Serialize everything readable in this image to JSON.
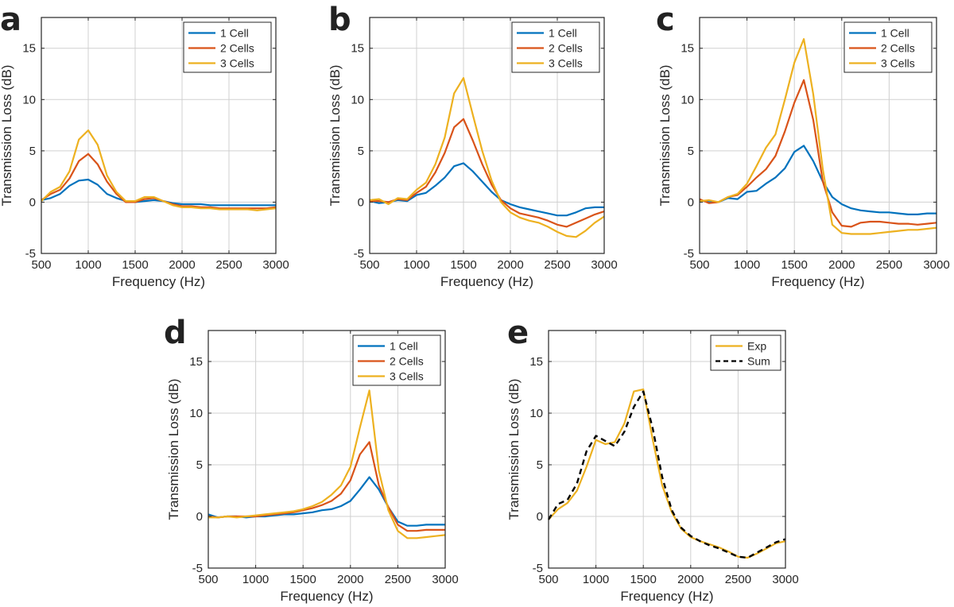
{
  "colors": {
    "1 Cell": "#0072BD",
    "2 Cells": "#D95319",
    "3 Cells": "#EDB120",
    "Exp": "#EDB120",
    "Sum": "#000000"
  },
  "chart_data": [
    {
      "panel": "a",
      "type": "line",
      "xlabel": "Frequency (Hz)",
      "ylabel": "Transmission Loss (dB)",
      "xlim": [
        500,
        3000
      ],
      "ylim": [
        -5,
        18
      ],
      "xticks": [
        500,
        1000,
        1500,
        2000,
        2500,
        3000
      ],
      "yticks": [
        -5,
        0,
        5,
        10,
        15
      ],
      "grid": true,
      "legend_position": "top-right",
      "x": [
        500,
        600,
        700,
        800,
        900,
        1000,
        1100,
        1200,
        1300,
        1400,
        1500,
        1600,
        1700,
        1800,
        1900,
        2000,
        2100,
        2200,
        2300,
        2400,
        2500,
        2600,
        2700,
        2800,
        2900,
        3000
      ],
      "series": [
        {
          "name": "1 Cell",
          "values": [
            0.2,
            0.4,
            0.8,
            1.6,
            2.1,
            2.2,
            1.7,
            0.8,
            0.4,
            0.1,
            0.0,
            0.1,
            0.2,
            0.1,
            -0.1,
            -0.2,
            -0.2,
            -0.2,
            -0.3,
            -0.3,
            -0.3,
            -0.3,
            -0.3,
            -0.3,
            -0.3,
            -0.3
          ]
        },
        {
          "name": "2 Cells",
          "values": [
            0.2,
            0.8,
            1.2,
            2.3,
            4.0,
            4.7,
            3.7,
            2.0,
            0.8,
            0.0,
            0.0,
            0.3,
            0.4,
            0.1,
            -0.2,
            -0.4,
            -0.4,
            -0.5,
            -0.5,
            -0.6,
            -0.6,
            -0.6,
            -0.6,
            -0.6,
            -0.6,
            -0.5
          ]
        },
        {
          "name": "3 Cells",
          "values": [
            0.1,
            1.0,
            1.5,
            3.0,
            6.1,
            7.0,
            5.6,
            2.6,
            1.0,
            0.1,
            0.1,
            0.5,
            0.5,
            0.1,
            -0.3,
            -0.5,
            -0.5,
            -0.6,
            -0.6,
            -0.7,
            -0.7,
            -0.7,
            -0.7,
            -0.8,
            -0.7,
            -0.6
          ]
        }
      ]
    },
    {
      "panel": "b",
      "type": "line",
      "xlabel": "Frequency (Hz)",
      "ylabel": "Transmission Loss (dB)",
      "xlim": [
        500,
        3000
      ],
      "ylim": [
        -5,
        18
      ],
      "xticks": [
        500,
        1000,
        1500,
        2000,
        2500,
        3000
      ],
      "yticks": [
        -5,
        0,
        5,
        10,
        15
      ],
      "grid": true,
      "legend_position": "top-right",
      "x": [
        500,
        600,
        700,
        800,
        900,
        1000,
        1100,
        1200,
        1300,
        1400,
        1500,
        1600,
        1700,
        1800,
        1900,
        2000,
        2100,
        2200,
        2300,
        2400,
        2500,
        2600,
        2700,
        2800,
        2900,
        3000
      ],
      "series": [
        {
          "name": "1 Cell",
          "values": [
            0.1,
            -0.1,
            0.0,
            0.2,
            0.1,
            0.7,
            0.9,
            1.6,
            2.4,
            3.5,
            3.8,
            3.0,
            2.0,
            1.0,
            0.2,
            -0.2,
            -0.5,
            -0.7,
            -0.9,
            -1.1,
            -1.3,
            -1.3,
            -1.0,
            -0.6,
            -0.5,
            -0.5
          ]
        },
        {
          "name": "2 Cells",
          "values": [
            0.1,
            0.1,
            0.0,
            0.3,
            0.2,
            0.9,
            1.5,
            2.9,
            4.8,
            7.3,
            8.1,
            6.0,
            3.7,
            1.7,
            0.2,
            -0.6,
            -1.1,
            -1.3,
            -1.5,
            -1.8,
            -2.2,
            -2.4,
            -2.0,
            -1.6,
            -1.2,
            -0.9
          ]
        },
        {
          "name": "3 Cells",
          "values": [
            0.2,
            0.3,
            -0.2,
            0.4,
            0.3,
            1.2,
            1.9,
            3.7,
            6.3,
            10.6,
            12.1,
            8.5,
            5.0,
            2.1,
            0.0,
            -1.0,
            -1.5,
            -1.8,
            -2.0,
            -2.4,
            -2.9,
            -3.3,
            -3.4,
            -2.8,
            -2.0,
            -1.4
          ]
        }
      ]
    },
    {
      "panel": "c",
      "type": "line",
      "xlabel": "Frequency (Hz)",
      "ylabel": "Transmission Loss (dB)",
      "xlim": [
        500,
        3000
      ],
      "ylim": [
        -5,
        18
      ],
      "xticks": [
        500,
        1000,
        1500,
        2000,
        2500,
        3000
      ],
      "yticks": [
        -5,
        0,
        5,
        10,
        15
      ],
      "grid": true,
      "legend_position": "top-right",
      "x": [
        500,
        600,
        700,
        800,
        900,
        1000,
        1100,
        1200,
        1300,
        1400,
        1500,
        1600,
        1700,
        1800,
        1900,
        2000,
        2100,
        2200,
        2300,
        2400,
        2500,
        2600,
        2700,
        2800,
        2900,
        3000
      ],
      "series": [
        {
          "name": "1 Cell",
          "values": [
            0.2,
            0.0,
            0.0,
            0.4,
            0.3,
            1.0,
            1.1,
            1.8,
            2.4,
            3.3,
            4.9,
            5.5,
            4.0,
            2.0,
            0.5,
            -0.2,
            -0.6,
            -0.8,
            -0.9,
            -1.0,
            -1.0,
            -1.1,
            -1.2,
            -1.2,
            -1.1,
            -1.1
          ]
        },
        {
          "name": "2 Cells",
          "values": [
            0.3,
            -0.1,
            0.0,
            0.5,
            0.7,
            1.5,
            2.4,
            3.2,
            4.5,
            6.9,
            9.7,
            11.9,
            8.0,
            2.0,
            -1.0,
            -2.3,
            -2.4,
            -2.0,
            -1.9,
            -1.9,
            -2.0,
            -2.1,
            -2.1,
            -2.2,
            -2.1,
            -2.0
          ]
        },
        {
          "name": "3 Cells",
          "values": [
            0.1,
            0.2,
            0.0,
            0.5,
            0.8,
            1.8,
            3.5,
            5.3,
            6.6,
            10.0,
            13.6,
            15.9,
            10.5,
            3.2,
            -2.2,
            -3.0,
            -3.1,
            -3.1,
            -3.1,
            -3.0,
            -2.9,
            -2.8,
            -2.7,
            -2.7,
            -2.6,
            -2.5
          ]
        }
      ]
    },
    {
      "panel": "d",
      "type": "line",
      "xlabel": "Frequency (Hz)",
      "ylabel": "Transmission Loss (dB)",
      "xlim": [
        500,
        3000
      ],
      "ylim": [
        -5,
        18
      ],
      "xticks": [
        500,
        1000,
        1500,
        2000,
        2500,
        3000
      ],
      "yticks": [
        -5,
        0,
        5,
        10,
        15
      ],
      "grid": true,
      "legend_position": "top-right",
      "x": [
        500,
        600,
        700,
        800,
        900,
        1000,
        1100,
        1200,
        1300,
        1400,
        1500,
        1600,
        1700,
        1800,
        1900,
        2000,
        2100,
        2200,
        2300,
        2400,
        2500,
        2600,
        2700,
        2800,
        2900,
        3000
      ],
      "series": [
        {
          "name": "1 Cell",
          "values": [
            0.2,
            -0.1,
            0.0,
            0.0,
            -0.1,
            0.0,
            0.0,
            0.1,
            0.2,
            0.2,
            0.3,
            0.4,
            0.6,
            0.7,
            1.0,
            1.5,
            2.6,
            3.8,
            2.6,
            0.9,
            -0.5,
            -0.9,
            -0.9,
            -0.8,
            -0.8,
            -0.8
          ]
        },
        {
          "name": "2 Cells",
          "values": [
            0.0,
            -0.1,
            0.0,
            0.0,
            0.0,
            0.0,
            0.1,
            0.2,
            0.3,
            0.4,
            0.6,
            0.8,
            1.1,
            1.5,
            2.2,
            3.5,
            6.0,
            7.2,
            3.0,
            0.9,
            -0.8,
            -1.4,
            -1.4,
            -1.3,
            -1.3,
            -1.3
          ]
        },
        {
          "name": "3 Cells",
          "values": [
            -0.1,
            -0.1,
            0.0,
            -0.1,
            0.0,
            0.1,
            0.2,
            0.3,
            0.4,
            0.5,
            0.7,
            1.0,
            1.4,
            2.1,
            3.0,
            4.8,
            8.6,
            12.2,
            4.4,
            0.6,
            -1.4,
            -2.1,
            -2.1,
            -2.0,
            -1.9,
            -1.8
          ]
        }
      ]
    },
    {
      "panel": "e",
      "type": "line",
      "xlabel": "Frequency (Hz)",
      "ylabel": "Transmission Loss (dB)",
      "xlim": [
        500,
        3000
      ],
      "ylim": [
        -5,
        18
      ],
      "xticks": [
        500,
        1000,
        1500,
        2000,
        2500,
        3000
      ],
      "yticks": [
        -5,
        0,
        5,
        10,
        15
      ],
      "grid": true,
      "legend_position": "top-right",
      "x": [
        500,
        600,
        700,
        800,
        900,
        1000,
        1100,
        1200,
        1300,
        1400,
        1500,
        1600,
        1700,
        1800,
        1900,
        2000,
        2100,
        2200,
        2300,
        2400,
        2500,
        2600,
        2700,
        2800,
        2900,
        3000
      ],
      "series": [
        {
          "name": "Exp",
          "dashed": false,
          "values": [
            -0.3,
            0.7,
            1.3,
            2.5,
            4.8,
            7.4,
            7.0,
            7.2,
            9.0,
            12.1,
            12.3,
            7.4,
            3.0,
            0.4,
            -1.2,
            -2.0,
            -2.4,
            -2.7,
            -3.0,
            -3.4,
            -3.9,
            -4.0,
            -3.6,
            -3.1,
            -2.6,
            -2.4
          ]
        },
        {
          "name": "Sum",
          "dashed": true,
          "values": [
            -0.3,
            1.2,
            1.6,
            3.2,
            6.3,
            7.8,
            7.3,
            6.8,
            8.2,
            10.6,
            12.1,
            8.5,
            3.8,
            0.6,
            -1.1,
            -1.9,
            -2.4,
            -2.8,
            -3.1,
            -3.5,
            -3.9,
            -4.0,
            -3.5,
            -3.0,
            -2.5,
            -2.2
          ]
        }
      ]
    }
  ]
}
